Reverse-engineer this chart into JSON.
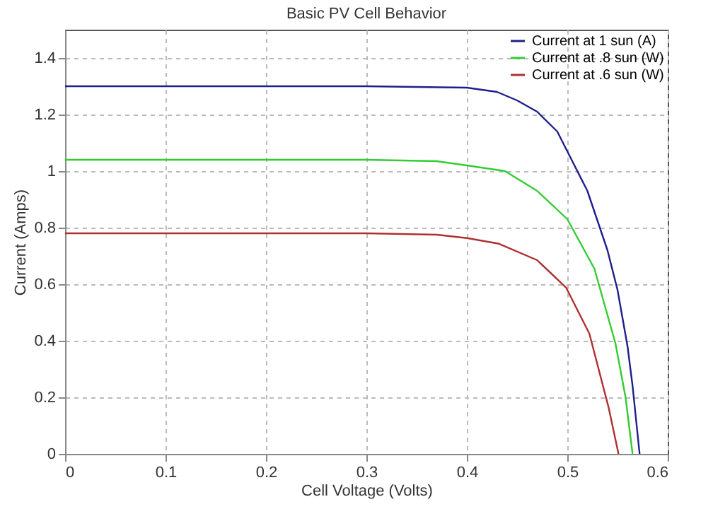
{
  "chart_data": {
    "type": "line",
    "title": "Basic PV Cell Behavior",
    "xlabel": "Cell Voltage (Volts)",
    "ylabel": "Current (Amps)",
    "xlim": [
      0,
      0.6
    ],
    "xticks": [
      0,
      0.1,
      0.2,
      0.3,
      0.4,
      0.5,
      0.6
    ],
    "ylim": [
      0,
      1.5
    ],
    "yticks": [
      0,
      0.2,
      0.4,
      0.6,
      0.8,
      1,
      1.2,
      1.4
    ],
    "grid": true,
    "legend": "top right",
    "line_style": "solid",
    "marker": "none",
    "series": [
      {
        "name": "Current at 1 sun (A)",
        "color": "#1f1f8c",
        "x": [
          0,
          0.1,
          0.2,
          0.3,
          0.4,
          0.43,
          0.45,
          0.47,
          0.49,
          0.5,
          0.52,
          0.54,
          0.55,
          0.56,
          0.565,
          0.572
        ],
        "values": [
          1.3,
          1.3,
          1.3,
          1.3,
          1.295,
          1.28,
          1.25,
          1.21,
          1.14,
          1.07,
          0.93,
          0.72,
          0.58,
          0.38,
          0.24,
          0
        ]
      },
      {
        "name": "Current at .8 sun (W)",
        "color": "#33cc33",
        "x": [
          0,
          0.1,
          0.2,
          0.3,
          0.37,
          0.4,
          0.438,
          0.47,
          0.5,
          0.527,
          0.548,
          0.558,
          0.565
        ],
        "values": [
          1.04,
          1.04,
          1.04,
          1.04,
          1.035,
          1.02,
          1.0,
          0.93,
          0.83,
          0.655,
          0.39,
          0.2,
          0
        ]
      },
      {
        "name": "Current at .6 sun (W)",
        "color": "#b03030",
        "x": [
          0,
          0.1,
          0.2,
          0.3,
          0.37,
          0.4,
          0.432,
          0.47,
          0.499,
          0.522,
          0.541,
          0.551
        ],
        "values": [
          0.78,
          0.78,
          0.78,
          0.78,
          0.775,
          0.763,
          0.743,
          0.685,
          0.587,
          0.425,
          0.166,
          0
        ]
      }
    ]
  }
}
